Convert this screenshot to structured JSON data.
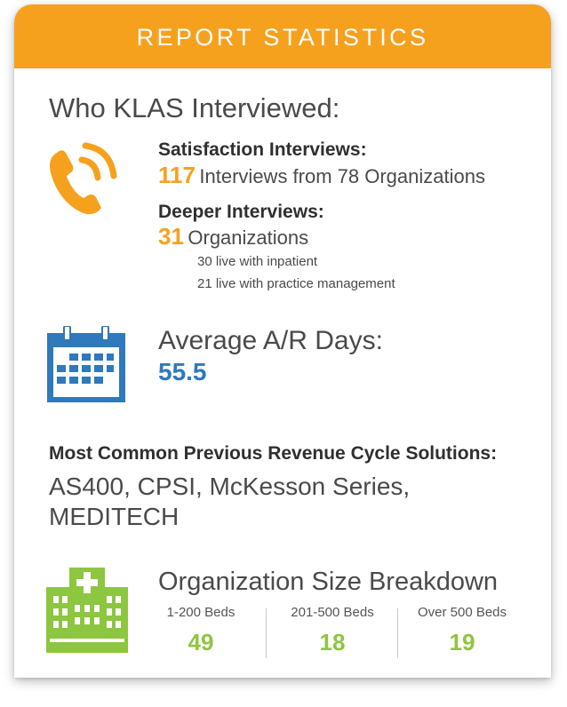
{
  "header": {
    "title": "REPORT STATISTICS"
  },
  "interviewed": {
    "heading": "Who KLAS Interviewed:",
    "icon": "phone-ringing-icon",
    "satisfaction": {
      "label": "Satisfaction Interviews:",
      "count": "117",
      "detail": "Interviews from 78 Organizations"
    },
    "deeper": {
      "label": "Deeper Interviews:",
      "count": "31",
      "detail": "Organizations",
      "notes": [
        "30 live with inpatient",
        "21 live with practice management"
      ]
    }
  },
  "ar_days": {
    "icon": "calendar-icon",
    "label": "Average A/R Days:",
    "value": "55.5"
  },
  "previous_solutions": {
    "label": "Most Common Previous Revenue Cycle Solutions:",
    "line1": "AS400, CPSI, McKesson Series,",
    "line2": "MEDITECH"
  },
  "org_size": {
    "icon": "hospital-icon",
    "title": "Organization Size Breakdown",
    "columns": [
      {
        "label": "1-200 Beds",
        "value": "49"
      },
      {
        "label": "201-500 Beds",
        "value": "18"
      },
      {
        "label": "Over 500 Beds",
        "value": "19"
      }
    ]
  },
  "colors": {
    "orange": "#f6a11e",
    "blue": "#2f79bd",
    "green": "#8dc63f"
  }
}
